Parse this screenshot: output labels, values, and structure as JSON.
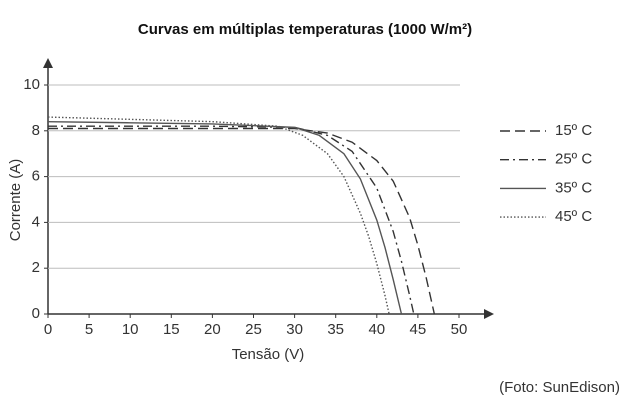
{
  "chart_data": {
    "type": "line",
    "title": "Curvas em múltiplas temperaturas (1000 W/m²)",
    "x_label": "Tensão (V)",
    "y_label": "Corrente (A)",
    "annotation": "(Foto: SunEdison)",
    "xlim": [
      0,
      50
    ],
    "xticks": [
      0,
      5,
      10,
      15,
      20,
      25,
      30,
      35,
      40,
      45,
      50
    ],
    "ylim": [
      0,
      10
    ],
    "yticks": [
      0,
      2,
      4,
      6,
      8,
      10
    ],
    "grid": true,
    "legend": "right",
    "series": [
      {
        "name": "15º C",
        "color": "#333333",
        "dash": "dashed",
        "x": [
          0,
          10,
          20,
          30,
          34,
          37,
          40,
          42,
          44,
          45,
          46,
          47
        ],
        "values": [
          8.1,
          8.1,
          8.1,
          8.1,
          7.9,
          7.5,
          6.7,
          5.8,
          4.2,
          3.0,
          1.6,
          0
        ]
      },
      {
        "name": "25º C",
        "color": "#333333",
        "dash": "dashdot",
        "x": [
          0,
          10,
          20,
          30,
          34,
          37,
          40,
          42,
          43,
          44,
          44.5
        ],
        "values": [
          8.2,
          8.2,
          8.2,
          8.15,
          7.8,
          7.1,
          5.5,
          3.6,
          2.3,
          0.8,
          0
        ]
      },
      {
        "name": "35º C",
        "color": "#555555",
        "dash": "solid",
        "x": [
          0,
          10,
          20,
          30,
          33,
          36,
          38,
          40,
          41,
          42,
          43
        ],
        "values": [
          8.4,
          8.35,
          8.3,
          8.15,
          7.8,
          7.0,
          5.9,
          4.1,
          2.9,
          1.5,
          0
        ]
      },
      {
        "name": "45º C",
        "color": "#555555",
        "dash": "dotted",
        "x": [
          0,
          10,
          20,
          28,
          31,
          34,
          36,
          38,
          39,
          40,
          41,
          41.5
        ],
        "values": [
          8.6,
          8.5,
          8.4,
          8.2,
          7.8,
          7.0,
          6.0,
          4.4,
          3.4,
          2.2,
          0.8,
          0
        ]
      }
    ]
  }
}
